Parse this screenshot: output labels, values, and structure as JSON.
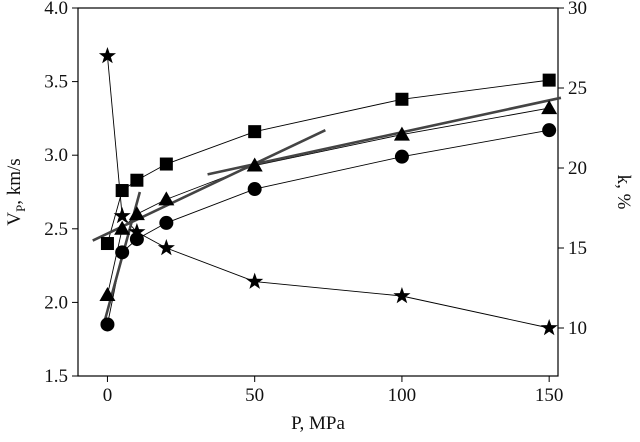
{
  "chart_data": {
    "type": "line",
    "xlabel": "P, MPa",
    "ylabel_parts": [
      "V",
      "P",
      ", km/s"
    ],
    "y2label": "k, %",
    "x": [
      0,
      5,
      10,
      20,
      50,
      100,
      150
    ],
    "series": [
      {
        "marker": "square",
        "color": "#000000",
        "values": [
          2.4,
          2.76,
          2.83,
          2.94,
          3.16,
          3.38,
          3.51
        ]
      },
      {
        "marker": "triangle",
        "color": "#000000",
        "values": [
          2.05,
          2.5,
          2.6,
          2.7,
          2.93,
          3.14,
          3.32
        ]
      },
      {
        "marker": "circle",
        "color": "#000000",
        "values": [
          1.85,
          2.34,
          2.43,
          2.54,
          2.77,
          2.99,
          3.17
        ]
      },
      {
        "marker": "star",
        "color": "#000000",
        "axis": "y2",
        "values": [
          27.0,
          17.0,
          16.0,
          15.0,
          12.9,
          12.0,
          10.0
        ]
      }
    ],
    "fit_lines": [
      {
        "color": "#444444",
        "x": [
          -1,
          11
        ],
        "values": [
          1.87,
          2.75
        ]
      },
      {
        "color": "#444444",
        "x": [
          -5,
          74
        ],
        "values": [
          2.42,
          3.17
        ]
      },
      {
        "color": "#444444",
        "x": [
          34,
          154
        ],
        "values": [
          2.87,
          3.39
        ]
      }
    ],
    "xlim": [
      -10,
      153
    ],
    "xticks": [
      0,
      50,
      100,
      150
    ],
    "ylim": [
      1.5,
      4.0
    ],
    "yticks": [
      1.5,
      {
        "value": 2,
        "label": "2.0"
      },
      2.5,
      {
        "value": 3,
        "label": "3.0"
      },
      3.5,
      {
        "value": 4,
        "label": "4.0"
      }
    ],
    "y2lim": [
      7,
      30
    ],
    "y2ticks": [
      10,
      15,
      20,
      25,
      30
    ],
    "grid": false
  }
}
